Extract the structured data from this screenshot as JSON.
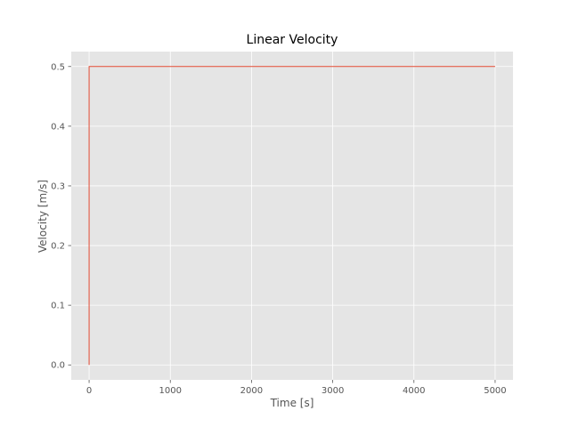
{
  "chart_data": {
    "type": "line",
    "title": "Linear Velocity",
    "xlabel": "Time [s]",
    "ylabel": "Velocity [m/s]",
    "xlim": [
      -220,
      5220
    ],
    "ylim": [
      -0.025,
      0.525
    ],
    "xticks": [
      0,
      1000,
      2000,
      3000,
      4000,
      5000
    ],
    "yticks": [
      0.0,
      0.1,
      0.2,
      0.3,
      0.4,
      0.5
    ],
    "xtick_labels": [
      "0",
      "1000",
      "2000",
      "3000",
      "4000",
      "5000"
    ],
    "ytick_labels": [
      "0.0",
      "0.1",
      "0.2",
      "0.3",
      "0.4",
      "0.5"
    ],
    "grid": true,
    "series": [
      {
        "color": "#e24a33",
        "x": [
          0,
          0,
          5000
        ],
        "y": [
          0.0,
          0.5,
          0.5
        ]
      }
    ]
  },
  "colors": {
    "plot_background": "#e5e5e5",
    "grid": "#ffffff",
    "line": "#e24a33"
  }
}
